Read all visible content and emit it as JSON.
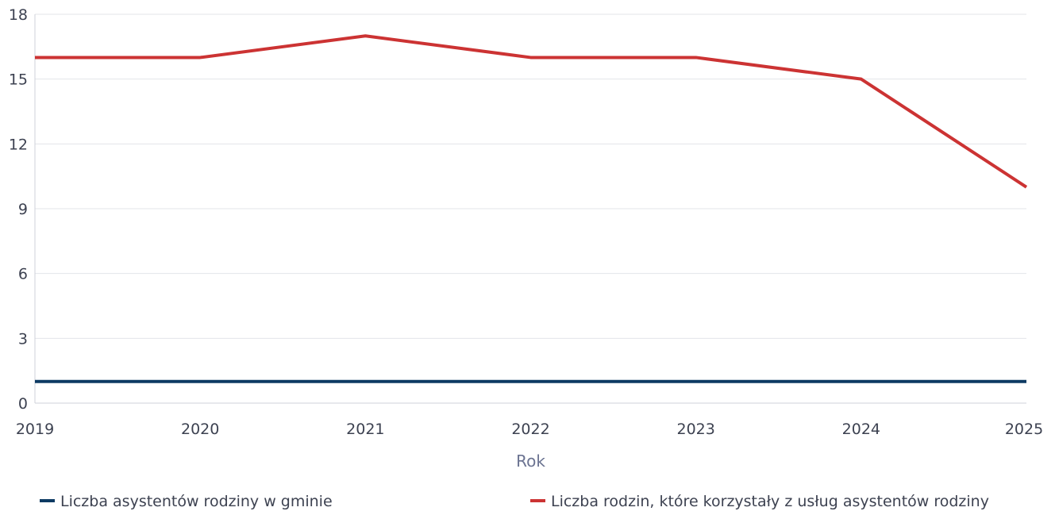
{
  "chart_data": {
    "type": "line",
    "title": "",
    "xlabel": "Rok",
    "ylabel": "",
    "x": [
      "2019",
      "2020",
      "2021",
      "2022",
      "2023",
      "2024",
      "2025"
    ],
    "ylim": [
      0,
      18
    ],
    "yticks": [
      0,
      3,
      6,
      9,
      12,
      15,
      18
    ],
    "grid": true,
    "legend_position": "bottom",
    "series": [
      {
        "name": "Liczba asystentów rodziny w gminie",
        "color": "#0d3a63",
        "values": [
          1,
          1,
          1,
          1,
          1,
          1,
          1
        ]
      },
      {
        "name": "Liczba rodzin, które korzystały z usług asystentów rodziny",
        "color": "#cc3333",
        "values": [
          16,
          16,
          17,
          16,
          16,
          15,
          10
        ]
      }
    ]
  }
}
